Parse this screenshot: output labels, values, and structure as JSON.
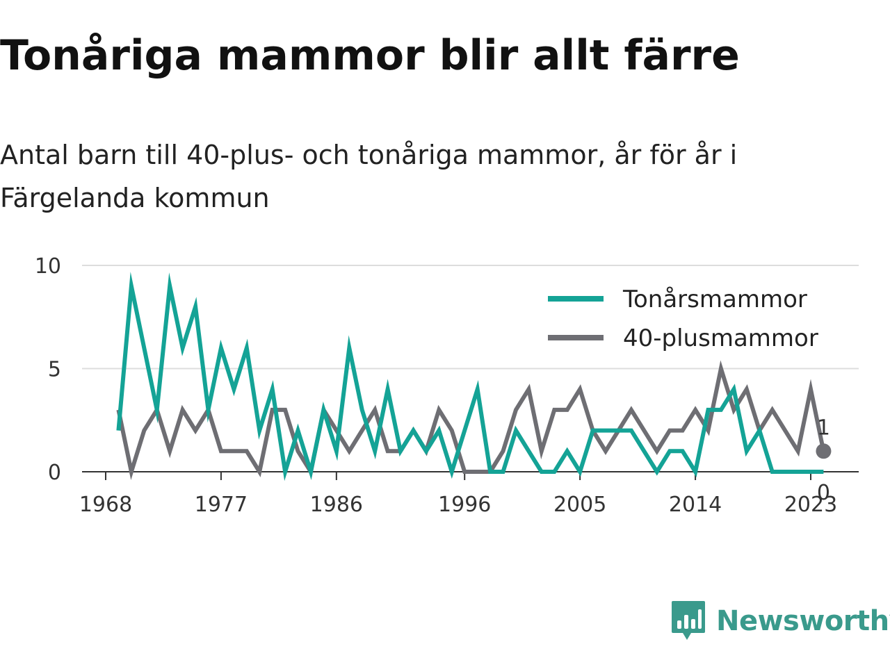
{
  "title": "Tonåriga mammor blir allt färre",
  "subtitle": "Antal barn till 40-plus- och tonåriga mammor, år för år i Färgelanda kommun",
  "brand": {
    "name": "Newsworthy",
    "color": "#3a9a8c"
  },
  "chart_data": {
    "type": "line",
    "title": "Tonåriga mammor blir allt färre",
    "subtitle": "Antal barn till 40-plus- och tonåriga mammor, år för år i Färgelanda kommun",
    "xlabel": "",
    "ylabel": "",
    "x_ticks": [
      "1968",
      "1977",
      "1986",
      "1996",
      "2005",
      "2014",
      "2023"
    ],
    "y_ticks": [
      "0",
      "5",
      "10"
    ],
    "ylim": [
      0,
      10
    ],
    "xlim": [
      1968,
      2024
    ],
    "grid": "horizontal",
    "legend": "top-right",
    "x": [
      1969,
      1970,
      1971,
      1972,
      1973,
      1974,
      1975,
      1976,
      1977,
      1978,
      1979,
      1980,
      1981,
      1982,
      1983,
      1984,
      1985,
      1986,
      1987,
      1988,
      1989,
      1990,
      1991,
      1992,
      1993,
      1994,
      1995,
      1996,
      1997,
      1998,
      1999,
      2000,
      2001,
      2002,
      2003,
      2004,
      2005,
      2006,
      2007,
      2008,
      2009,
      2010,
      2011,
      2012,
      2013,
      2014,
      2015,
      2016,
      2017,
      2018,
      2019,
      2020,
      2021,
      2022,
      2023,
      2024
    ],
    "series": [
      {
        "name": "Tonårsmammor",
        "color": "#14a396",
        "values": [
          2,
          9,
          6,
          3,
          9,
          6,
          8,
          3,
          6,
          4,
          6,
          2,
          4,
          0,
          2,
          0,
          3,
          1,
          6,
          3,
          1,
          4,
          1,
          2,
          1,
          2,
          0,
          2,
          4,
          0,
          0,
          2,
          1,
          0,
          0,
          1,
          0,
          2,
          2,
          2,
          2,
          1,
          0,
          1,
          1,
          0,
          3,
          3,
          4,
          1,
          2,
          0,
          0,
          0,
          0,
          0
        ]
      },
      {
        "name": "40-plusmammor",
        "color": "#6e6e73",
        "values": [
          3,
          0,
          2,
          3,
          1,
          3,
          2,
          3,
          1,
          1,
          1,
          0,
          3,
          3,
          1,
          0,
          3,
          2,
          1,
          2,
          3,
          1,
          1,
          2,
          1,
          3,
          2,
          0,
          0,
          0,
          1,
          3,
          4,
          1,
          3,
          3,
          4,
          2,
          1,
          2,
          3,
          2,
          1,
          2,
          2,
          3,
          2,
          5,
          3,
          4,
          2,
          3,
          2,
          1,
          4,
          1
        ]
      }
    ],
    "end_labels": {
      "40-plusmammor": "1",
      "Tonårsmammor": "0"
    }
  }
}
